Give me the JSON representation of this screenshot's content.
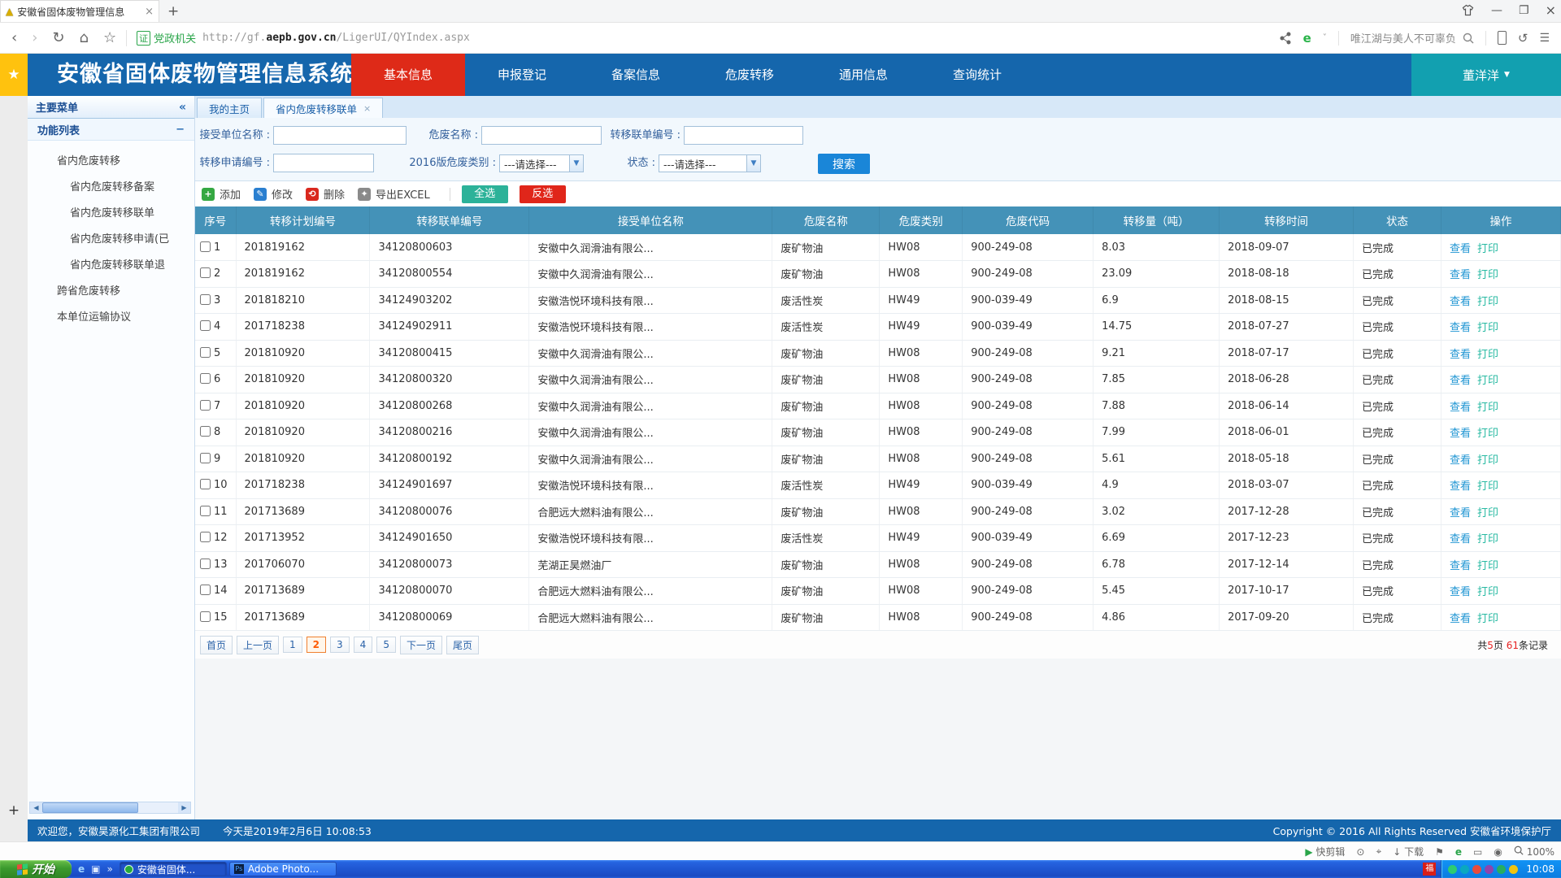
{
  "browser": {
    "tab_title": "安徽省固体废物管理信息",
    "new_tab": "+",
    "search_text": "唯江湖与美人不可辜负",
    "cert_badge": "证",
    "cert_type": "党政机关",
    "url_protocol": "http://gf.",
    "url_domain": "aepb.gov.cn",
    "url_path": "/LigerUI/QYIndex.aspx",
    "elogo": "e"
  },
  "icons": {
    "warning": "▲",
    "close": "×",
    "min": "—",
    "restore": "❐",
    "back": "‹",
    "forward": "›",
    "refresh": "↻",
    "home": "⌂",
    "fav_star": "☆",
    "caret_down": "˅",
    "undo": "↺",
    "menu": "☰",
    "sidebar_star": "★",
    "collapse": "«",
    "minus": "−",
    "plus": "+",
    "user_caret": "▼",
    "tab_close": "×",
    "scroll_left": "◀",
    "scroll_right": "▶",
    "select_arrow": "▼",
    "play": "▶",
    "capture": "⊙",
    "pin": "⌖",
    "down": "↓",
    "flag": "⚑",
    "ie": "e",
    "window": "▭",
    "speaker": "◉",
    "launcher_e": "e",
    "launcher_w": "▣",
    "launcher_more": "»"
  },
  "header": {
    "title": "安徽省固体废物管理信息系统",
    "nav": [
      {
        "label": "基本信息",
        "active": true
      },
      {
        "label": "申报登记",
        "active": false
      },
      {
        "label": "备案信息",
        "active": false
      },
      {
        "label": "危废转移",
        "active": false
      },
      {
        "label": "通用信息",
        "active": false
      },
      {
        "label": "查询统计",
        "active": false
      }
    ],
    "user": "董洋洋"
  },
  "sidebar": {
    "main_menu": "主要菜单",
    "function_list": "功能列表",
    "items": [
      {
        "label": "省内危废转移",
        "level": 1
      },
      {
        "label": "省内危废转移备案",
        "level": 2
      },
      {
        "label": "省内危废转移联单",
        "level": 2
      },
      {
        "label": "省内危废转移申请(已",
        "level": 2
      },
      {
        "label": "省内危废转移联单退",
        "level": 2
      },
      {
        "label": "跨省危废转移",
        "level": 1
      },
      {
        "label": "本单位运输协议",
        "level": 1
      }
    ]
  },
  "tabs": [
    {
      "label": "我的主页",
      "active": false,
      "closable": false
    },
    {
      "label": "省内危废转移联单",
      "active": true,
      "closable": true
    }
  ],
  "search": {
    "label_receiver": "接受单位名称 :",
    "label_waste_name": "危废名称 :",
    "label_manifest_no": "转移联单编号 :",
    "label_apply_no": "转移申请编号 :",
    "label_category_2016": "2016版危废类别 :",
    "label_status": "状态 :",
    "select_placeholder": "---请选择---",
    "button": "搜索"
  },
  "toolbar": {
    "add": "添加",
    "edit": "修改",
    "delete": "删除",
    "export": "导出EXCEL",
    "select_all": "全选",
    "invert": "反选"
  },
  "table": {
    "columns": [
      "序号",
      "转移计划编号",
      "转移联单编号",
      "接受单位名称",
      "危废名称",
      "危废类别",
      "危废代码",
      "转移量（吨）",
      "转移时间",
      "状态",
      "操作"
    ],
    "action_view": "查看",
    "action_print": "打印",
    "rows": [
      {
        "plan": "201819162",
        "manifest": "34120800603",
        "receiver": "安徽中久润滑油有限公...",
        "waste": "废矿物油",
        "category": "HW08",
        "code": "900-249-08",
        "amount": "8.03",
        "date": "2018-09-07",
        "status": "已完成"
      },
      {
        "plan": "201819162",
        "manifest": "34120800554",
        "receiver": "安徽中久润滑油有限公...",
        "waste": "废矿物油",
        "category": "HW08",
        "code": "900-249-08",
        "amount": "23.09",
        "date": "2018-08-18",
        "status": "已完成"
      },
      {
        "plan": "201818210",
        "manifest": "34124903202",
        "receiver": "安徽浩悦环境科技有限...",
        "waste": "废活性炭",
        "category": "HW49",
        "code": "900-039-49",
        "amount": "6.9",
        "date": "2018-08-15",
        "status": "已完成"
      },
      {
        "plan": "201718238",
        "manifest": "34124902911",
        "receiver": "安徽浩悦环境科技有限...",
        "waste": "废活性炭",
        "category": "HW49",
        "code": "900-039-49",
        "amount": "14.75",
        "date": "2018-07-27",
        "status": "已完成"
      },
      {
        "plan": "201810920",
        "manifest": "34120800415",
        "receiver": "安徽中久润滑油有限公...",
        "waste": "废矿物油",
        "category": "HW08",
        "code": "900-249-08",
        "amount": "9.21",
        "date": "2018-07-17",
        "status": "已完成"
      },
      {
        "plan": "201810920",
        "manifest": "34120800320",
        "receiver": "安徽中久润滑油有限公...",
        "waste": "废矿物油",
        "category": "HW08",
        "code": "900-249-08",
        "amount": "7.85",
        "date": "2018-06-28",
        "status": "已完成"
      },
      {
        "plan": "201810920",
        "manifest": "34120800268",
        "receiver": "安徽中久润滑油有限公...",
        "waste": "废矿物油",
        "category": "HW08",
        "code": "900-249-08",
        "amount": "7.88",
        "date": "2018-06-14",
        "status": "已完成"
      },
      {
        "plan": "201810920",
        "manifest": "34120800216",
        "receiver": "安徽中久润滑油有限公...",
        "waste": "废矿物油",
        "category": "HW08",
        "code": "900-249-08",
        "amount": "7.99",
        "date": "2018-06-01",
        "status": "已完成"
      },
      {
        "plan": "201810920",
        "manifest": "34120800192",
        "receiver": "安徽中久润滑油有限公...",
        "waste": "废矿物油",
        "category": "HW08",
        "code": "900-249-08",
        "amount": "5.61",
        "date": "2018-05-18",
        "status": "已完成"
      },
      {
        "plan": "201718238",
        "manifest": "34124901697",
        "receiver": "安徽浩悦环境科技有限...",
        "waste": "废活性炭",
        "category": "HW49",
        "code": "900-039-49",
        "amount": "4.9",
        "date": "2018-03-07",
        "status": "已完成"
      },
      {
        "plan": "201713689",
        "manifest": "34120800076",
        "receiver": "合肥远大燃料油有限公...",
        "waste": "废矿物油",
        "category": "HW08",
        "code": "900-249-08",
        "amount": "3.02",
        "date": "2017-12-28",
        "status": "已完成"
      },
      {
        "plan": "201713952",
        "manifest": "34124901650",
        "receiver": "安徽浩悦环境科技有限...",
        "waste": "废活性炭",
        "category": "HW49",
        "code": "900-039-49",
        "amount": "6.69",
        "date": "2017-12-23",
        "status": "已完成"
      },
      {
        "plan": "201706070",
        "manifest": "34120800073",
        "receiver": "芜湖正昊燃油厂",
        "waste": "废矿物油",
        "category": "HW08",
        "code": "900-249-08",
        "amount": "6.78",
        "date": "2017-12-14",
        "status": "已完成"
      },
      {
        "plan": "201713689",
        "manifest": "34120800070",
        "receiver": "合肥远大燃料油有限公...",
        "waste": "废矿物油",
        "category": "HW08",
        "code": "900-249-08",
        "amount": "5.45",
        "date": "2017-10-17",
        "status": "已完成"
      },
      {
        "plan": "201713689",
        "manifest": "34120800069",
        "receiver": "合肥远大燃料油有限公...",
        "waste": "废矿物油",
        "category": "HW08",
        "code": "900-249-08",
        "amount": "4.86",
        "date": "2017-09-20",
        "status": "已完成"
      }
    ]
  },
  "pagination": {
    "buttons": [
      "首页",
      "上一页",
      "1",
      "2",
      "3",
      "4",
      "5",
      "下一页",
      "尾页"
    ],
    "current": "2",
    "label_total": "共",
    "total_pages": "5",
    "label_pages": "页",
    "total_records": "61",
    "label_records": "条记录"
  },
  "status_bar": {
    "welcome": "欢迎您，安徽昊源化工集团有限公司",
    "today": "今天是2019年2月6日  10:08:53",
    "copyright": "Copyright © 2016 All Rights Reserved 安徽省环境保护厅"
  },
  "bottom_strip": {
    "clip_label": "快剪辑",
    "download_label": "下载",
    "zoom_level": "100%"
  },
  "taskbar": {
    "start": "开始",
    "tasks": [
      {
        "label": "安徽省固体...",
        "icon": "globe",
        "pressed": true
      },
      {
        "label": "Adobe Photo...",
        "icon": "ps",
        "pressed": false
      }
    ],
    "ps_glyph": "Ps",
    "red_app": "福",
    "tray_icon_colors": [
      "#2ecc71",
      "#0aa8c0",
      "#e74c3c",
      "#8e44ad",
      "#27ae60",
      "#f1c40f"
    ],
    "time": "10:08"
  }
}
